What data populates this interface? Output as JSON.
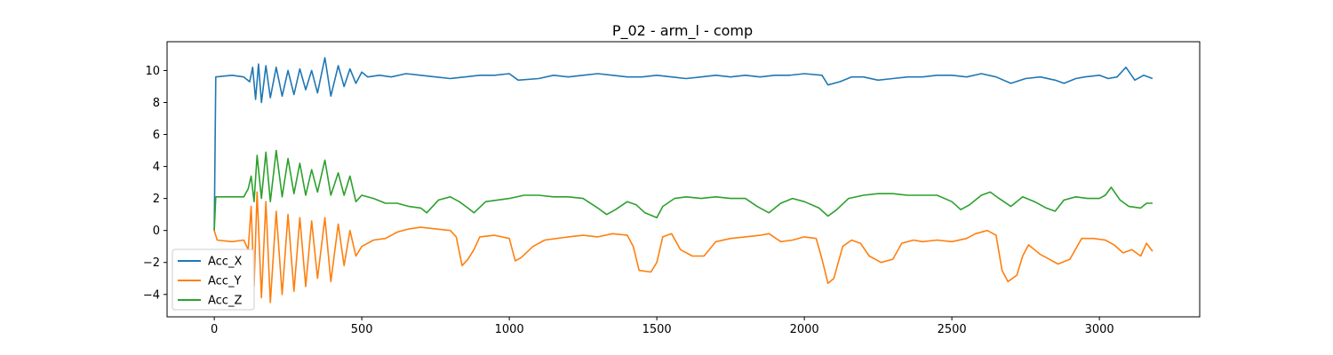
{
  "chart_data": {
    "type": "line",
    "title": "P_02 - arm_l - comp",
    "xlabel": "",
    "ylabel": "",
    "xlim": [
      -160,
      3340
    ],
    "ylim": [
      -5.4,
      11.8
    ],
    "x_ticks": [
      0,
      500,
      1000,
      1500,
      2000,
      2500,
      3000
    ],
    "y_ticks": [
      -4,
      -2,
      0,
      2,
      4,
      6,
      8,
      10
    ],
    "grid": false,
    "legend": "lower-left",
    "series": [
      {
        "name": "Acc_X",
        "color": "#1f77b4",
        "points": [
          [
            0,
            0.0
          ],
          [
            5,
            9.6
          ],
          [
            60,
            9.7
          ],
          [
            100,
            9.6
          ],
          [
            120,
            9.3
          ],
          [
            130,
            10.2
          ],
          [
            140,
            8.2
          ],
          [
            150,
            10.4
          ],
          [
            160,
            8.0
          ],
          [
            175,
            10.3
          ],
          [
            190,
            8.3
          ],
          [
            210,
            10.2
          ],
          [
            230,
            8.4
          ],
          [
            250,
            10.0
          ],
          [
            270,
            8.5
          ],
          [
            290,
            10.1
          ],
          [
            310,
            8.8
          ],
          [
            330,
            10.0
          ],
          [
            350,
            8.6
          ],
          [
            375,
            10.8
          ],
          [
            395,
            8.4
          ],
          [
            420,
            10.3
          ],
          [
            440,
            9.0
          ],
          [
            460,
            10.1
          ],
          [
            480,
            9.2
          ],
          [
            500,
            9.9
          ],
          [
            520,
            9.6
          ],
          [
            560,
            9.7
          ],
          [
            600,
            9.6
          ],
          [
            650,
            9.8
          ],
          [
            700,
            9.7
          ],
          [
            750,
            9.6
          ],
          [
            800,
            9.5
          ],
          [
            850,
            9.6
          ],
          [
            900,
            9.7
          ],
          [
            950,
            9.7
          ],
          [
            1000,
            9.8
          ],
          [
            1030,
            9.4
          ],
          [
            1100,
            9.5
          ],
          [
            1150,
            9.7
          ],
          [
            1200,
            9.6
          ],
          [
            1250,
            9.7
          ],
          [
            1300,
            9.8
          ],
          [
            1350,
            9.7
          ],
          [
            1400,
            9.6
          ],
          [
            1450,
            9.6
          ],
          [
            1500,
            9.7
          ],
          [
            1550,
            9.6
          ],
          [
            1600,
            9.5
          ],
          [
            1650,
            9.6
          ],
          [
            1700,
            9.7
          ],
          [
            1750,
            9.6
          ],
          [
            1800,
            9.7
          ],
          [
            1850,
            9.6
          ],
          [
            1900,
            9.7
          ],
          [
            1950,
            9.7
          ],
          [
            2000,
            9.8
          ],
          [
            2060,
            9.7
          ],
          [
            2080,
            9.1
          ],
          [
            2120,
            9.3
          ],
          [
            2160,
            9.6
          ],
          [
            2200,
            9.6
          ],
          [
            2250,
            9.4
          ],
          [
            2300,
            9.5
          ],
          [
            2350,
            9.6
          ],
          [
            2400,
            9.6
          ],
          [
            2450,
            9.7
          ],
          [
            2500,
            9.7
          ],
          [
            2550,
            9.6
          ],
          [
            2600,
            9.8
          ],
          [
            2650,
            9.6
          ],
          [
            2700,
            9.2
          ],
          [
            2750,
            9.5
          ],
          [
            2800,
            9.6
          ],
          [
            2850,
            9.4
          ],
          [
            2880,
            9.2
          ],
          [
            2920,
            9.5
          ],
          [
            2950,
            9.6
          ],
          [
            3000,
            9.7
          ],
          [
            3030,
            9.5
          ],
          [
            3060,
            9.6
          ],
          [
            3090,
            10.2
          ],
          [
            3120,
            9.4
          ],
          [
            3150,
            9.7
          ],
          [
            3180,
            9.5
          ]
        ]
      },
      {
        "name": "Acc_Y",
        "color": "#ff7f0e",
        "points": [
          [
            0,
            0.0
          ],
          [
            10,
            -0.6
          ],
          [
            60,
            -0.7
          ],
          [
            100,
            -0.6
          ],
          [
            115,
            -1.2
          ],
          [
            125,
            1.5
          ],
          [
            135,
            -3.5
          ],
          [
            145,
            2.4
          ],
          [
            160,
            -4.2
          ],
          [
            175,
            1.8
          ],
          [
            190,
            -4.5
          ],
          [
            210,
            1.2
          ],
          [
            230,
            -4.0
          ],
          [
            250,
            1.0
          ],
          [
            270,
            -3.8
          ],
          [
            290,
            0.8
          ],
          [
            310,
            -3.5
          ],
          [
            330,
            0.6
          ],
          [
            350,
            -3.0
          ],
          [
            375,
            0.8
          ],
          [
            395,
            -3.2
          ],
          [
            420,
            0.4
          ],
          [
            440,
            -2.2
          ],
          [
            460,
            0.0
          ],
          [
            480,
            -1.6
          ],
          [
            500,
            -1.0
          ],
          [
            540,
            -0.6
          ],
          [
            580,
            -0.5
          ],
          [
            620,
            -0.1
          ],
          [
            660,
            0.1
          ],
          [
            700,
            0.2
          ],
          [
            750,
            0.1
          ],
          [
            800,
            0.0
          ],
          [
            820,
            -0.4
          ],
          [
            840,
            -2.2
          ],
          [
            860,
            -1.8
          ],
          [
            880,
            -1.2
          ],
          [
            900,
            -0.4
          ],
          [
            950,
            -0.3
          ],
          [
            1000,
            -0.5
          ],
          [
            1020,
            -1.9
          ],
          [
            1040,
            -1.7
          ],
          [
            1080,
            -1.0
          ],
          [
            1120,
            -0.6
          ],
          [
            1160,
            -0.5
          ],
          [
            1200,
            -0.4
          ],
          [
            1250,
            -0.3
          ],
          [
            1300,
            -0.4
          ],
          [
            1350,
            -0.2
          ],
          [
            1400,
            -0.3
          ],
          [
            1420,
            -1.0
          ],
          [
            1440,
            -2.5
          ],
          [
            1480,
            -2.6
          ],
          [
            1500,
            -2.0
          ],
          [
            1520,
            -0.4
          ],
          [
            1550,
            -0.2
          ],
          [
            1580,
            -1.2
          ],
          [
            1620,
            -1.6
          ],
          [
            1660,
            -1.6
          ],
          [
            1700,
            -0.7
          ],
          [
            1750,
            -0.5
          ],
          [
            1800,
            -0.4
          ],
          [
            1850,
            -0.3
          ],
          [
            1880,
            -0.2
          ],
          [
            1920,
            -0.7
          ],
          [
            1960,
            -0.6
          ],
          [
            2000,
            -0.4
          ],
          [
            2040,
            -0.5
          ],
          [
            2060,
            -1.8
          ],
          [
            2080,
            -3.3
          ],
          [
            2100,
            -3.0
          ],
          [
            2130,
            -1.0
          ],
          [
            2160,
            -0.6
          ],
          [
            2190,
            -0.8
          ],
          [
            2220,
            -1.6
          ],
          [
            2260,
            -2.0
          ],
          [
            2300,
            -1.8
          ],
          [
            2330,
            -0.8
          ],
          [
            2370,
            -0.6
          ],
          [
            2400,
            -0.7
          ],
          [
            2450,
            -0.6
          ],
          [
            2500,
            -0.7
          ],
          [
            2550,
            -0.5
          ],
          [
            2580,
            -0.2
          ],
          [
            2620,
            0.0
          ],
          [
            2650,
            -0.3
          ],
          [
            2670,
            -2.5
          ],
          [
            2690,
            -3.2
          ],
          [
            2720,
            -2.8
          ],
          [
            2740,
            -1.6
          ],
          [
            2760,
            -0.9
          ],
          [
            2800,
            -1.5
          ],
          [
            2830,
            -1.8
          ],
          [
            2860,
            -2.1
          ],
          [
            2900,
            -1.8
          ],
          [
            2940,
            -0.5
          ],
          [
            2980,
            -0.5
          ],
          [
            3020,
            -0.6
          ],
          [
            3050,
            -0.9
          ],
          [
            3080,
            -1.4
          ],
          [
            3110,
            -1.2
          ],
          [
            3140,
            -1.6
          ],
          [
            3160,
            -0.8
          ],
          [
            3180,
            -1.3
          ]
        ]
      },
      {
        "name": "Acc_Z",
        "color": "#2ca02c",
        "points": [
          [
            0,
            0.0
          ],
          [
            5,
            2.1
          ],
          [
            60,
            2.1
          ],
          [
            100,
            2.1
          ],
          [
            115,
            2.6
          ],
          [
            125,
            3.4
          ],
          [
            135,
            1.8
          ],
          [
            145,
            4.7
          ],
          [
            160,
            2.0
          ],
          [
            175,
            4.9
          ],
          [
            190,
            1.8
          ],
          [
            210,
            5.0
          ],
          [
            230,
            2.1
          ],
          [
            250,
            4.5
          ],
          [
            270,
            2.3
          ],
          [
            290,
            4.2
          ],
          [
            310,
            2.2
          ],
          [
            330,
            3.8
          ],
          [
            350,
            2.4
          ],
          [
            375,
            4.4
          ],
          [
            395,
            2.2
          ],
          [
            420,
            3.6
          ],
          [
            440,
            2.2
          ],
          [
            460,
            3.4
          ],
          [
            480,
            1.8
          ],
          [
            500,
            2.2
          ],
          [
            540,
            2.0
          ],
          [
            580,
            1.7
          ],
          [
            620,
            1.7
          ],
          [
            660,
            1.5
          ],
          [
            700,
            1.4
          ],
          [
            720,
            1.1
          ],
          [
            760,
            1.9
          ],
          [
            800,
            2.1
          ],
          [
            830,
            1.8
          ],
          [
            860,
            1.4
          ],
          [
            880,
            1.1
          ],
          [
            920,
            1.8
          ],
          [
            960,
            1.9
          ],
          [
            1000,
            2.0
          ],
          [
            1050,
            2.2
          ],
          [
            1100,
            2.2
          ],
          [
            1150,
            2.1
          ],
          [
            1200,
            2.1
          ],
          [
            1250,
            2.0
          ],
          [
            1300,
            1.4
          ],
          [
            1330,
            1.0
          ],
          [
            1360,
            1.3
          ],
          [
            1400,
            1.8
          ],
          [
            1430,
            1.6
          ],
          [
            1460,
            1.1
          ],
          [
            1500,
            0.8
          ],
          [
            1520,
            1.5
          ],
          [
            1560,
            2.0
          ],
          [
            1600,
            2.1
          ],
          [
            1650,
            2.0
          ],
          [
            1700,
            2.1
          ],
          [
            1750,
            2.0
          ],
          [
            1800,
            2.0
          ],
          [
            1840,
            1.5
          ],
          [
            1880,
            1.1
          ],
          [
            1920,
            1.7
          ],
          [
            1960,
            2.0
          ],
          [
            2000,
            1.8
          ],
          [
            2050,
            1.4
          ],
          [
            2080,
            0.9
          ],
          [
            2110,
            1.3
          ],
          [
            2150,
            2.0
          ],
          [
            2200,
            2.2
          ],
          [
            2250,
            2.3
          ],
          [
            2300,
            2.3
          ],
          [
            2350,
            2.2
          ],
          [
            2400,
            2.2
          ],
          [
            2450,
            2.2
          ],
          [
            2500,
            1.8
          ],
          [
            2530,
            1.3
          ],
          [
            2560,
            1.6
          ],
          [
            2600,
            2.2
          ],
          [
            2630,
            2.4
          ],
          [
            2660,
            2.0
          ],
          [
            2700,
            1.5
          ],
          [
            2740,
            2.1
          ],
          [
            2780,
            1.8
          ],
          [
            2820,
            1.4
          ],
          [
            2850,
            1.2
          ],
          [
            2880,
            1.9
          ],
          [
            2920,
            2.1
          ],
          [
            2960,
            2.0
          ],
          [
            3000,
            2.0
          ],
          [
            3020,
            2.2
          ],
          [
            3040,
            2.7
          ],
          [
            3070,
            1.9
          ],
          [
            3100,
            1.5
          ],
          [
            3140,
            1.4
          ],
          [
            3160,
            1.7
          ],
          [
            3180,
            1.7
          ]
        ]
      }
    ]
  }
}
